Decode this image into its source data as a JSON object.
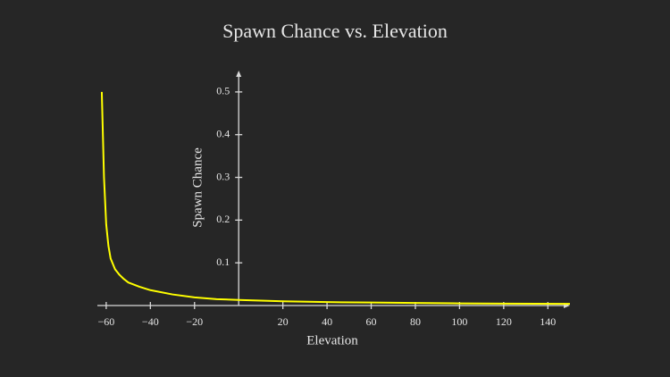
{
  "chart_data": {
    "type": "line",
    "title": "Spawn Chance vs. Elevation",
    "x_label": "Elevation",
    "y_label": "Spawn Chance",
    "x": [
      -62,
      -61,
      -60,
      -59,
      -58,
      -56,
      -54,
      -52,
      -50,
      -45,
      -40,
      -30,
      -20,
      -10,
      0,
      20,
      40,
      60,
      80,
      100,
      120,
      150
    ],
    "series": [
      {
        "name": "Spawn Chance",
        "color": "#ffff00",
        "values": [
          0.5,
          0.3,
          0.19,
          0.14,
          0.11,
          0.085,
          0.072,
          0.062,
          0.054,
          0.044,
          0.036,
          0.026,
          0.019,
          0.015,
          0.013,
          0.01,
          0.008,
          0.007,
          0.006,
          0.005,
          0.0045,
          0.004
        ]
      }
    ],
    "xlim": [
      -64,
      150
    ],
    "ylim": [
      0,
      0.55
    ],
    "xticks": [
      {
        "value": -60,
        "label": "−60"
      },
      {
        "value": -40,
        "label": "−40"
      },
      {
        "value": -20,
        "label": "−20"
      },
      20,
      40,
      60,
      80,
      100,
      120,
      140
    ],
    "yticks": [
      0.1,
      0.2,
      0.3,
      0.4,
      0.5
    ],
    "grid": false
  }
}
